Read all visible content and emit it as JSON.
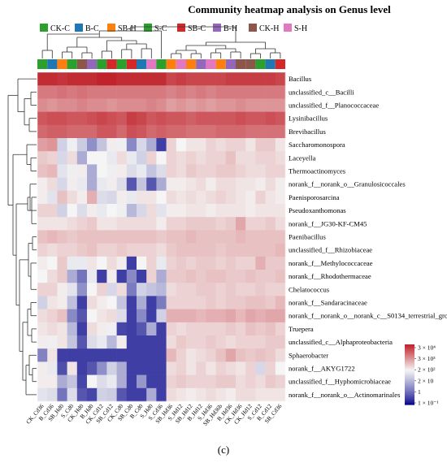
{
  "chart_data": {
    "type": "heatmap",
    "title": "Community heatmap analysis on Genus level",
    "caption": "(c)",
    "groups": [
      {
        "name": "CK-C",
        "color": "#2ca02c"
      },
      {
        "name": "B-C",
        "color": "#1f77b4"
      },
      {
        "name": "SB-H",
        "color": "#ff7f0e"
      },
      {
        "name": "S-C",
        "color": "#2ca02c"
      },
      {
        "name": "SB-C",
        "color": "#d62728"
      },
      {
        "name": "B-H",
        "color": "#9467bd"
      },
      {
        "name": "CK-H",
        "color": "#8c564b"
      },
      {
        "name": "S-H",
        "color": "#e377c2"
      }
    ],
    "rows": [
      "Bacillus",
      "unclassified_c__Bacilli",
      "unclassified_f__Planococcaceae",
      "Lysinibacillus",
      "Brevibacillus",
      "Saccharomonospora",
      "Laceyella",
      "Thermoactinomyces",
      "norank_f__norank_o__Granulosicoccales",
      "Paenisporosarcina",
      "Pseudoxanthomonas",
      "norank_f__JG30-KF-CM45",
      "Paenibacillus",
      "unclassified_f__Rhizobiaceae",
      "norank_f__Methylococcaceae",
      "norank_f__Rhodothermaceae",
      "Chelatococcus",
      "norank_f__Sandaracinaceae",
      "norank_f__norank_o__norank_c__S0134_terrestrial_group",
      "Truepera",
      "unclassified_c__Alphaproteobacteria",
      "Sphaerobacter",
      "norank_f__AKYG1722",
      "unclassified_f__Hyphomicrobiaceae",
      "norank_f__norank_o__Actinomarinales"
    ],
    "columns": [
      "CK_Cd36",
      "B_Cd36",
      "SB_Hd0",
      "S_Cd0",
      "CK_Hd0",
      "B_Hd0",
      "CK_Cd12",
      "SB_Cd12",
      "CK_Cd0",
      "SB_Cd0",
      "B_Cd0",
      "S_Hd0",
      "S_Cd36",
      "SB_Hd36",
      "S_Hd12",
      "SB_Hd12",
      "B_Hd12",
      "S_Hd36",
      "SB_Hd36b",
      "B_Hd36",
      "CK_Hd36",
      "CK_Hd12",
      "S_Cd12",
      "B_Cd12",
      "SB_Cd36"
    ],
    "column_groups": [
      "CK-C",
      "B-C",
      "SB-H",
      "S-C",
      "CK-H",
      "B-H",
      "CK-C",
      "SB-C",
      "CK-C",
      "SB-C",
      "B-C",
      "S-H",
      "S-C",
      "SB-H",
      "S-H",
      "SB-H",
      "B-H",
      "S-H",
      "SB-H",
      "B-H",
      "CK-H",
      "CK-H",
      "S-C",
      "B-C",
      "SB-C"
    ],
    "values": [
      [
        4.5,
        4.5,
        4.4,
        4.5,
        4.5,
        4.5,
        4.6,
        4.6,
        4.5,
        4.5,
        4.5,
        4.5,
        4.5,
        4.2,
        4.3,
        4.2,
        4.2,
        4.2,
        4.2,
        4.3,
        4.3,
        4.3,
        4.3,
        4.3,
        4.2
      ],
      [
        3.6,
        3.6,
        3.7,
        3.6,
        3.7,
        3.6,
        3.6,
        3.6,
        3.6,
        3.6,
        3.6,
        3.6,
        3.6,
        3.5,
        3.6,
        3.5,
        3.6,
        3.5,
        3.6,
        3.6,
        3.6,
        3.6,
        3.6,
        3.6,
        3.6
      ],
      [
        3.4,
        3.3,
        3.4,
        3.4,
        3.5,
        3.4,
        3.4,
        3.3,
        3.4,
        3.4,
        3.4,
        3.5,
        3.4,
        3.2,
        3.3,
        3.2,
        3.3,
        3.2,
        3.3,
        3.3,
        3.4,
        3.3,
        3.3,
        3.3,
        3.3
      ],
      [
        4.0,
        4.1,
        4.1,
        4.0,
        4.0,
        4.1,
        4.2,
        4.1,
        4.0,
        4.3,
        4.2,
        4.0,
        4.1,
        4.0,
        4.0,
        3.9,
        4.0,
        4.0,
        4.0,
        4.0,
        4.1,
        4.0,
        4.0,
        4.1,
        4.0
      ],
      [
        3.8,
        3.9,
        3.9,
        3.8,
        3.8,
        3.8,
        4.0,
        4.0,
        3.8,
        4.1,
        4.0,
        3.8,
        3.9,
        3.8,
        3.8,
        3.7,
        3.7,
        3.7,
        3.8,
        3.8,
        3.8,
        3.7,
        3.7,
        3.7,
        3.7
      ],
      [
        3.2,
        3.3,
        1.6,
        2.1,
        1.5,
        0.6,
        1.4,
        2.3,
        2.1,
        0.5,
        1.7,
        1.0,
        -0.5,
        2.6,
        2.2,
        2.4,
        2.4,
        2.6,
        2.5,
        2.6,
        2.6,
        2.4,
        2.7,
        2.7,
        2.4
      ],
      [
        2.7,
        2.6,
        1.7,
        2.5,
        1.0,
        2.2,
        2.2,
        2.0,
        2.5,
        2.0,
        1.6,
        2.6,
        2.2,
        2.6,
        2.5,
        2.6,
        2.5,
        2.6,
        2.6,
        2.8,
        2.5,
        2.5,
        2.6,
        2.6,
        2.5
      ],
      [
        2.8,
        2.9,
        1.9,
        2.1,
        2.3,
        1.0,
        2.2,
        2.1,
        2.3,
        1.8,
        2.0,
        1.4,
        1.8,
        2.6,
        2.5,
        2.7,
        2.6,
        2.6,
        2.7,
        2.7,
        2.6,
        2.5,
        2.5,
        2.6,
        2.6
      ],
      [
        2.3,
        2.5,
        1.7,
        2.3,
        2.0,
        1.0,
        2.0,
        2.3,
        1.8,
        -0.2,
        1.4,
        -0.2,
        1.0,
        2.3,
        2.3,
        2.4,
        2.5,
        2.3,
        2.5,
        2.5,
        2.4,
        2.4,
        2.3,
        2.5,
        2.3
      ],
      [
        2.3,
        1.9,
        2.8,
        2.5,
        2.3,
        3.0,
        1.8,
        1.7,
        2.3,
        2.0,
        2.4,
        2.4,
        2.2,
        2.5,
        2.4,
        2.5,
        2.4,
        2.5,
        2.6,
        2.5,
        2.4,
        2.3,
        2.6,
        2.4,
        2.3
      ],
      [
        2.6,
        2.6,
        1.6,
        2.2,
        1.8,
        2.3,
        2.0,
        2.2,
        2.1,
        1.2,
        1.7,
        2.5,
        1.9,
        2.3,
        2.3,
        2.4,
        2.4,
        2.3,
        2.4,
        2.4,
        2.4,
        2.3,
        2.4,
        2.4,
        2.4
      ],
      [
        2.4,
        2.4,
        2.4,
        2.5,
        2.6,
        2.7,
        2.4,
        2.4,
        2.5,
        2.5,
        2.5,
        2.5,
        2.3,
        2.6,
        2.6,
        2.7,
        2.7,
        2.7,
        2.6,
        2.7,
        3.1,
        2.6,
        2.6,
        2.7,
        2.5
      ],
      [
        2.8,
        2.9,
        2.8,
        2.7,
        2.8,
        2.8,
        2.8,
        2.8,
        2.8,
        2.8,
        2.8,
        2.8,
        2.7,
        2.8,
        2.8,
        2.9,
        2.8,
        2.8,
        2.8,
        2.8,
        2.9,
        2.8,
        2.8,
        2.8,
        2.8
      ],
      [
        2.6,
        2.5,
        2.6,
        2.6,
        2.7,
        2.8,
        2.6,
        2.6,
        2.7,
        2.6,
        2.6,
        2.6,
        2.5,
        2.7,
        2.8,
        2.8,
        2.8,
        2.8,
        2.7,
        2.8,
        2.8,
        2.8,
        2.8,
        2.8,
        2.9
      ],
      [
        2.3,
        2.2,
        2.7,
        2.0,
        2.0,
        2.4,
        2.2,
        2.5,
        2.3,
        -0.5,
        2.2,
        2.6,
        2.0,
        2.6,
        2.7,
        2.6,
        2.7,
        2.7,
        2.6,
        2.7,
        2.6,
        2.6,
        3.0,
        2.7,
        2.7
      ],
      [
        2.2,
        2.5,
        2.7,
        1.0,
        0.2,
        2.0,
        -0.5,
        2.3,
        -0.5,
        0.5,
        -0.5,
        2.6,
        1.0,
        2.7,
        2.7,
        2.8,
        2.7,
        2.8,
        2.8,
        2.7,
        2.7,
        2.8,
        2.7,
        2.7,
        2.8
      ],
      [
        2.6,
        2.6,
        2.3,
        1.9,
        0.6,
        2.2,
        2.6,
        1.7,
        2.5,
        0.3,
        1.6,
        1.4,
        1.2,
        2.5,
        2.6,
        2.6,
        2.7,
        2.7,
        2.6,
        2.7,
        2.6,
        2.6,
        2.7,
        2.6,
        2.6
      ],
      [
        1.6,
        2.4,
        2.3,
        1.3,
        -0.5,
        2.5,
        2.3,
        2.2,
        1.4,
        -0.5,
        1.0,
        -0.5,
        0.3,
        2.6,
        2.6,
        2.6,
        2.6,
        2.7,
        2.6,
        2.7,
        2.7,
        2.8,
        2.8,
        2.7,
        2.9
      ],
      [
        2.5,
        2.6,
        2.8,
        0.5,
        -0.2,
        2.2,
        2.4,
        2.5,
        1.8,
        -0.5,
        0.5,
        -0.5,
        1.6,
        3.0,
        3.0,
        3.0,
        2.9,
        3.0,
        3.0,
        3.1,
        2.9,
        3.1,
        3.0,
        3.1,
        3.1
      ],
      [
        2.4,
        2.5,
        2.4,
        1.2,
        -0.5,
        2.5,
        2.3,
        2.1,
        -0.4,
        -0.5,
        -0.2,
        1.0,
        -0.5,
        2.6,
        2.5,
        2.6,
        2.6,
        2.6,
        2.6,
        2.7,
        2.6,
        2.8,
        2.7,
        2.8,
        2.6
      ],
      [
        2.3,
        2.1,
        2.4,
        1.4,
        -0.2,
        1.8,
        2.0,
        1.2,
        2.3,
        -0.5,
        -0.5,
        -0.5,
        -0.5,
        2.5,
        2.7,
        2.6,
        2.6,
        2.7,
        2.6,
        2.5,
        2.6,
        2.6,
        2.6,
        2.7,
        2.7
      ],
      [
        0.4,
        2.4,
        -0.5,
        -0.5,
        -0.5,
        -0.5,
        -0.5,
        -0.5,
        -0.5,
        -0.5,
        -0.5,
        -0.5,
        -0.5,
        2.9,
        2.6,
        2.4,
        2.5,
        2.6,
        2.8,
        3.1,
        2.8,
        2.7,
        2.8,
        2.7,
        2.5
      ],
      [
        2.3,
        2.0,
        -0.3,
        2.4,
        -0.5,
        -0.2,
        0.6,
        1.6,
        1.0,
        -0.5,
        -0.5,
        -0.5,
        -0.5,
        2.5,
        2.6,
        2.4,
        2.6,
        2.4,
        2.6,
        2.5,
        2.4,
        2.6,
        1.7,
        2.6,
        2.2
      ],
      [
        2.3,
        2.3,
        1.0,
        1.4,
        -0.4,
        2.2,
        1.8,
        2.0,
        1.0,
        -0.5,
        0.7,
        -0.5,
        -0.5,
        2.6,
        2.7,
        2.6,
        2.6,
        2.6,
        2.7,
        2.7,
        2.5,
        2.6,
        2.5,
        2.7,
        2.6
      ],
      [
        1.9,
        1.8,
        0.2,
        1.8,
        -0.2,
        -0.4,
        1.6,
        1.5,
        -0.2,
        -0.5,
        -0.5,
        1.0,
        -0.5,
        2.5,
        2.4,
        2.3,
        2.4,
        2.5,
        2.4,
        2.3,
        2.5,
        2.5,
        2.4,
        2.4,
        2.4
      ]
    ],
    "color_scale": {
      "min_label": "1 × 10⁻¹",
      "ticks": [
        {
          "label": "3 × 10⁴"
        },
        {
          "label": "3 × 10³"
        },
        {
          "label": "2 × 10²"
        },
        {
          "label": "2 × 10"
        },
        {
          "label": "1"
        },
        {
          "label": "1 × 10⁻¹"
        }
      ],
      "colors": [
        "#08088c",
        "#f5f5f5",
        "#c0232b"
      ]
    }
  }
}
